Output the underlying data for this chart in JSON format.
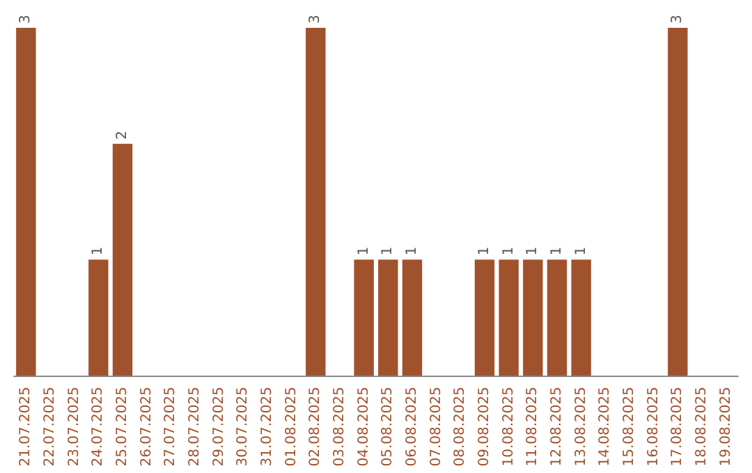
{
  "chart_data": {
    "type": "bar",
    "categories": [
      "21.07.2025",
      "22.07.2025",
      "23.07.2025",
      "24.07.2025",
      "25.07.2025",
      "26.07.2025",
      "27.07.2025",
      "28.07.2025",
      "29.07.2025",
      "30.07.2025",
      "31.07.2025",
      "01.08.2025",
      "02.08.2025",
      "03.08.2025",
      "04.08.2025",
      "05.08.2025",
      "06.08.2025",
      "07.08.2025",
      "08.08.2025",
      "09.08.2025",
      "10.08.2025",
      "11.08.2025",
      "12.08.2025",
      "13.08.2025",
      "14.08.2025",
      "15.08.2025",
      "16.08.2025",
      "17.08.2025",
      "18.08.2025",
      "19.08.2025"
    ],
    "values": [
      3,
      0,
      0,
      1,
      2,
      0,
      0,
      0,
      0,
      0,
      0,
      0,
      3,
      0,
      1,
      1,
      1,
      0,
      0,
      1,
      1,
      1,
      1,
      1,
      0,
      0,
      0,
      3,
      0,
      0
    ],
    "value_labels": [
      "3",
      null,
      null,
      "1",
      "2",
      null,
      null,
      null,
      null,
      null,
      null,
      null,
      "3",
      null,
      "1",
      "1",
      "1",
      null,
      null,
      "1",
      "1",
      "1",
      "1",
      "1",
      null,
      null,
      null,
      "3",
      null,
      null
    ],
    "color": "#a0522d",
    "tick_labels": "x"
  }
}
